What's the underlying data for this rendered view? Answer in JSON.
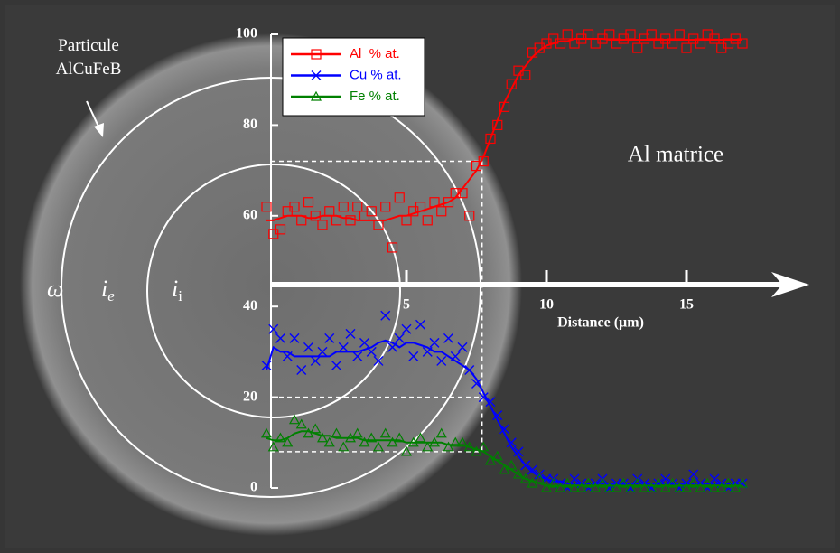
{
  "chart_data": {
    "type": "line",
    "xlabel": "Distance (µm)",
    "annotations": [
      "Particule",
      "AlCuFeB",
      "Al matrice"
    ],
    "symbols": [
      "ω",
      {
        "text": "i",
        "sub": "e"
      },
      {
        "text": "i",
        "sub": "i"
      }
    ],
    "xlim": [
      0,
      19
    ],
    "ylim": [
      0,
      100
    ],
    "xticks": [
      5,
      10,
      15
    ],
    "yticks": [
      0,
      20,
      40,
      60,
      80,
      100
    ],
    "reference_lines": {
      "x": 7.7,
      "y": [
        72,
        20,
        8
      ]
    },
    "x": [
      0,
      0.25,
      0.5,
      0.75,
      1,
      1.25,
      1.5,
      1.75,
      2,
      2.25,
      2.5,
      2.75,
      3,
      3.25,
      3.5,
      3.75,
      4,
      4.25,
      4.5,
      4.75,
      5,
      5.25,
      5.5,
      5.75,
      6,
      6.25,
      6.5,
      6.75,
      7,
      7.25,
      7.5,
      7.75,
      8,
      8.25,
      8.5,
      8.75,
      9,
      9.25,
      9.5,
      9.75,
      10,
      10.25,
      10.5,
      10.75,
      11,
      11.25,
      11.5,
      11.75,
      12,
      12.25,
      12.5,
      12.75,
      13,
      13.25,
      13.5,
      13.75,
      14,
      14.25,
      14.5,
      14.75,
      15,
      15.25,
      15.5,
      15.75,
      16,
      16.25,
      16.5,
      16.75,
      17
    ],
    "series": [
      {
        "name": "Al  % at.",
        "color": "#ff0000",
        "marker": "square",
        "values": [
          62,
          56,
          57,
          61,
          62,
          59,
          63,
          60,
          58,
          61,
          59,
          62,
          59,
          62,
          60,
          61,
          58,
          62,
          53,
          64,
          59,
          61,
          62,
          59,
          63,
          61,
          63,
          65,
          65,
          60,
          71,
          72,
          77,
          80,
          84,
          89,
          92,
          91,
          96,
          97,
          98,
          99,
          98,
          100,
          98,
          99,
          100,
          98,
          99,
          100,
          98,
          99,
          100,
          97,
          99,
          100,
          98,
          99,
          98,
          100,
          97,
          99,
          98,
          100,
          99,
          97,
          98,
          99,
          98
        ],
        "fit": [
          59,
          59,
          59.5,
          60,
          60,
          60,
          59.5,
          59.5,
          60,
          60,
          60,
          59.5,
          59.5,
          59,
          59,
          59,
          59,
          59,
          59.5,
          60,
          60,
          60.5,
          61,
          61.5,
          62,
          62.5,
          63,
          64,
          66,
          68,
          70,
          73,
          77,
          81,
          85,
          88,
          91,
          93,
          95,
          96.5,
          97.5,
          98,
          98.5,
          98.5,
          99,
          99,
          99,
          99,
          99,
          98.8,
          98.8,
          98.8,
          98.8,
          98.8,
          98.8,
          98.8,
          98.8,
          98.8,
          98.8,
          98.8,
          98.8,
          98.8,
          98.8,
          98.8,
          98.8,
          98.8,
          98.8,
          98.8,
          98.8
        ]
      },
      {
        "name": "Cu % at.",
        "color": "#0000ff",
        "marker": "x",
        "values": [
          27,
          35,
          33,
          29,
          33,
          26,
          31,
          28,
          30,
          33,
          27,
          31,
          34,
          29,
          32,
          30,
          28,
          38,
          31,
          33,
          35,
          29,
          36,
          30,
          32,
          28,
          33,
          29,
          31,
          26,
          23,
          20,
          19,
          16,
          13,
          10,
          8,
          5,
          4,
          3,
          2,
          2,
          1,
          0,
          2,
          1,
          0,
          1,
          2,
          0,
          1,
          1,
          0,
          2,
          1,
          0,
          1,
          2,
          1,
          0,
          1,
          3,
          1,
          0,
          2,
          1,
          0,
          1,
          1
        ],
        "fit": [
          26,
          31,
          30,
          30,
          29,
          29,
          29,
          29,
          29,
          29,
          30,
          30,
          30,
          30,
          30.5,
          31,
          32,
          32.5,
          32,
          31,
          32,
          32,
          31.5,
          31,
          30,
          30,
          29,
          28,
          27,
          26,
          24,
          21,
          18,
          15,
          12,
          9,
          7,
          5,
          3.5,
          2.5,
          2,
          1.5,
          1.5,
          1,
          1,
          1,
          1,
          1,
          1,
          1,
          1,
          1,
          1,
          1,
          1,
          1,
          1,
          1,
          1,
          1,
          1,
          1,
          1,
          1,
          1,
          1,
          1,
          1,
          1
        ]
      },
      {
        "name": "Fe % at.",
        "color": "#008000",
        "marker": "triangle",
        "values": [
          12,
          9,
          11,
          10,
          15,
          14,
          12,
          13,
          11,
          10,
          12,
          9,
          11,
          12,
          10,
          11,
          9,
          12,
          10,
          11,
          8,
          10,
          11,
          9,
          10,
          12,
          9,
          10,
          10,
          9,
          8,
          9,
          6,
          7,
          4,
          5,
          3,
          2,
          1,
          2,
          0,
          1,
          0,
          1,
          0,
          0,
          1,
          0,
          1,
          0,
          0,
          1,
          0,
          1,
          0,
          0,
          1,
          0,
          1,
          0,
          0,
          1,
          0,
          1,
          0,
          0,
          1,
          0,
          1
        ],
        "fit": [
          11,
          10.5,
          10.5,
          11,
          12,
          12.5,
          12.5,
          12,
          11.5,
          11.5,
          11,
          11,
          11,
          11,
          10.5,
          10.5,
          10.5,
          10.5,
          10.5,
          10.5,
          10,
          10,
          10,
          10,
          10,
          10,
          9.5,
          9.5,
          9.5,
          9,
          8.5,
          8,
          7,
          6,
          5,
          4,
          3,
          2,
          1.5,
          1,
          0.5,
          0.5,
          0.5,
          0.5,
          0.5,
          0.5,
          0.5,
          0.5,
          0.5,
          0.5,
          0.5,
          0.5,
          0.5,
          0.5,
          0.5,
          0.5,
          0.5,
          0.5,
          0.5,
          0.5,
          0.5,
          0.5,
          0.5,
          0.5,
          0.5,
          0.5,
          0.5,
          0.5,
          0.5
        ]
      }
    ]
  }
}
